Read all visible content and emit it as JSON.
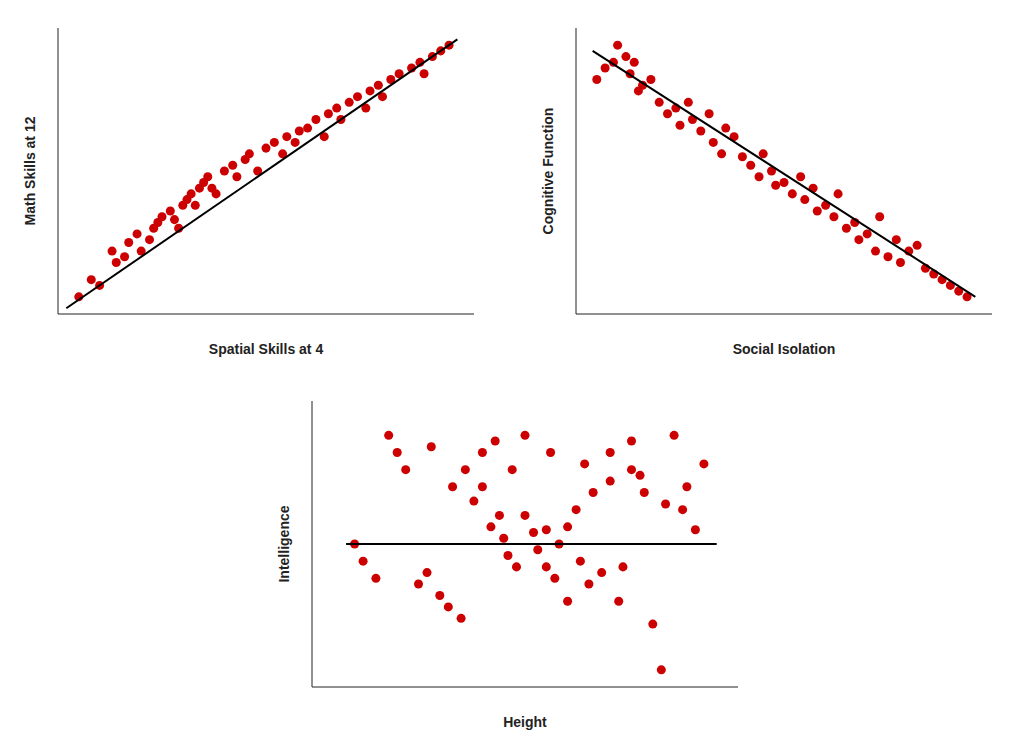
{
  "chart_data": [
    {
      "type": "scatter",
      "xlabel": "Spatial Skills at 4",
      "ylabel": "Math Skills at 12",
      "xlim": [
        0.0,
        1.0
      ],
      "ylim": [
        0.0,
        1.0
      ],
      "tick_labels": false,
      "grid": false,
      "series": [
        {
          "type": "scatter",
          "color": "#cc0000",
          "x": [
            0.05,
            0.08,
            0.1,
            0.13,
            0.14,
            0.16,
            0.17,
            0.19,
            0.2,
            0.22,
            0.23,
            0.24,
            0.25,
            0.27,
            0.28,
            0.29,
            0.3,
            0.31,
            0.32,
            0.33,
            0.34,
            0.35,
            0.36,
            0.37,
            0.38,
            0.4,
            0.42,
            0.43,
            0.45,
            0.46,
            0.48,
            0.5,
            0.52,
            0.54,
            0.55,
            0.57,
            0.58,
            0.6,
            0.62,
            0.64,
            0.65,
            0.67,
            0.68,
            0.7,
            0.72,
            0.74,
            0.75,
            0.77,
            0.78,
            0.8,
            0.82,
            0.85,
            0.87,
            0.88,
            0.9,
            0.92,
            0.94
          ],
          "values": [
            0.06,
            0.12,
            0.1,
            0.22,
            0.18,
            0.2,
            0.25,
            0.28,
            0.22,
            0.26,
            0.3,
            0.32,
            0.34,
            0.36,
            0.33,
            0.3,
            0.38,
            0.4,
            0.42,
            0.38,
            0.44,
            0.46,
            0.48,
            0.44,
            0.42,
            0.5,
            0.52,
            0.48,
            0.54,
            0.56,
            0.5,
            0.58,
            0.6,
            0.56,
            0.62,
            0.6,
            0.64,
            0.65,
            0.68,
            0.62,
            0.7,
            0.72,
            0.68,
            0.74,
            0.76,
            0.72,
            0.78,
            0.8,
            0.76,
            0.82,
            0.84,
            0.86,
            0.88,
            0.84,
            0.9,
            0.92,
            0.94
          ]
        },
        {
          "type": "line",
          "color": "#000000",
          "x": [
            0.02,
            0.96
          ],
          "values": [
            0.02,
            0.96
          ]
        }
      ]
    },
    {
      "type": "scatter",
      "xlabel": "Social Isolation",
      "ylabel": "Cognitive Function",
      "xlim": [
        0.0,
        1.0
      ],
      "ylim": [
        0.0,
        1.0
      ],
      "tick_labels": false,
      "grid": false,
      "series": [
        {
          "type": "scatter",
          "color": "#cc0000",
          "x": [
            0.05,
            0.07,
            0.09,
            0.1,
            0.12,
            0.13,
            0.14,
            0.15,
            0.16,
            0.18,
            0.2,
            0.22,
            0.24,
            0.25,
            0.27,
            0.28,
            0.3,
            0.32,
            0.33,
            0.35,
            0.36,
            0.38,
            0.4,
            0.42,
            0.44,
            0.45,
            0.47,
            0.48,
            0.5,
            0.52,
            0.54,
            0.55,
            0.57,
            0.58,
            0.6,
            0.62,
            0.63,
            0.65,
            0.67,
            0.68,
            0.7,
            0.72,
            0.73,
            0.75,
            0.77,
            0.78,
            0.8,
            0.82,
            0.84,
            0.86,
            0.88,
            0.9,
            0.92,
            0.94
          ],
          "values": [
            0.82,
            0.86,
            0.88,
            0.94,
            0.9,
            0.84,
            0.88,
            0.78,
            0.8,
            0.82,
            0.74,
            0.7,
            0.72,
            0.66,
            0.74,
            0.68,
            0.64,
            0.7,
            0.6,
            0.56,
            0.65,
            0.62,
            0.55,
            0.52,
            0.48,
            0.56,
            0.5,
            0.45,
            0.46,
            0.42,
            0.48,
            0.4,
            0.44,
            0.36,
            0.38,
            0.34,
            0.42,
            0.3,
            0.32,
            0.26,
            0.28,
            0.22,
            0.34,
            0.2,
            0.26,
            0.18,
            0.22,
            0.24,
            0.16,
            0.14,
            0.12,
            0.1,
            0.08,
            0.06
          ]
        },
        {
          "type": "line",
          "color": "#000000",
          "x": [
            0.04,
            0.96
          ],
          "values": [
            0.92,
            0.06
          ]
        }
      ]
    },
    {
      "type": "scatter",
      "xlabel": "Height",
      "ylabel": "Intelligence",
      "xlim": [
        0.0,
        1.0
      ],
      "ylim": [
        0.0,
        1.0
      ],
      "tick_labels": false,
      "grid": false,
      "series": [
        {
          "type": "scatter",
          "color": "#cc0000",
          "x": [
            0.1,
            0.12,
            0.15,
            0.18,
            0.2,
            0.22,
            0.25,
            0.27,
            0.28,
            0.3,
            0.32,
            0.33,
            0.35,
            0.36,
            0.38,
            0.4,
            0.4,
            0.42,
            0.43,
            0.44,
            0.45,
            0.46,
            0.47,
            0.48,
            0.5,
            0.5,
            0.52,
            0.53,
            0.55,
            0.55,
            0.56,
            0.57,
            0.58,
            0.6,
            0.6,
            0.62,
            0.63,
            0.64,
            0.65,
            0.66,
            0.68,
            0.7,
            0.7,
            0.72,
            0.73,
            0.75,
            0.75,
            0.77,
            0.78,
            0.8,
            0.82,
            0.83,
            0.85,
            0.87,
            0.88,
            0.9,
            0.92
          ],
          "values": [
            0.5,
            0.44,
            0.38,
            0.88,
            0.82,
            0.76,
            0.36,
            0.4,
            0.84,
            0.32,
            0.28,
            0.7,
            0.24,
            0.76,
            0.65,
            0.7,
            0.82,
            0.56,
            0.86,
            0.6,
            0.52,
            0.46,
            0.76,
            0.42,
            0.88,
            0.6,
            0.54,
            0.48,
            0.55,
            0.42,
            0.82,
            0.38,
            0.5,
            0.3,
            0.56,
            0.62,
            0.44,
            0.78,
            0.36,
            0.68,
            0.4,
            0.72,
            0.82,
            0.3,
            0.42,
            0.86,
            0.76,
            0.74,
            0.68,
            0.22,
            0.06,
            0.64,
            0.88,
            0.62,
            0.7,
            0.55,
            0.78
          ]
        },
        {
          "type": "line",
          "color": "#000000",
          "x": [
            0.08,
            0.95
          ],
          "values": [
            0.5,
            0.5
          ]
        }
      ]
    }
  ]
}
